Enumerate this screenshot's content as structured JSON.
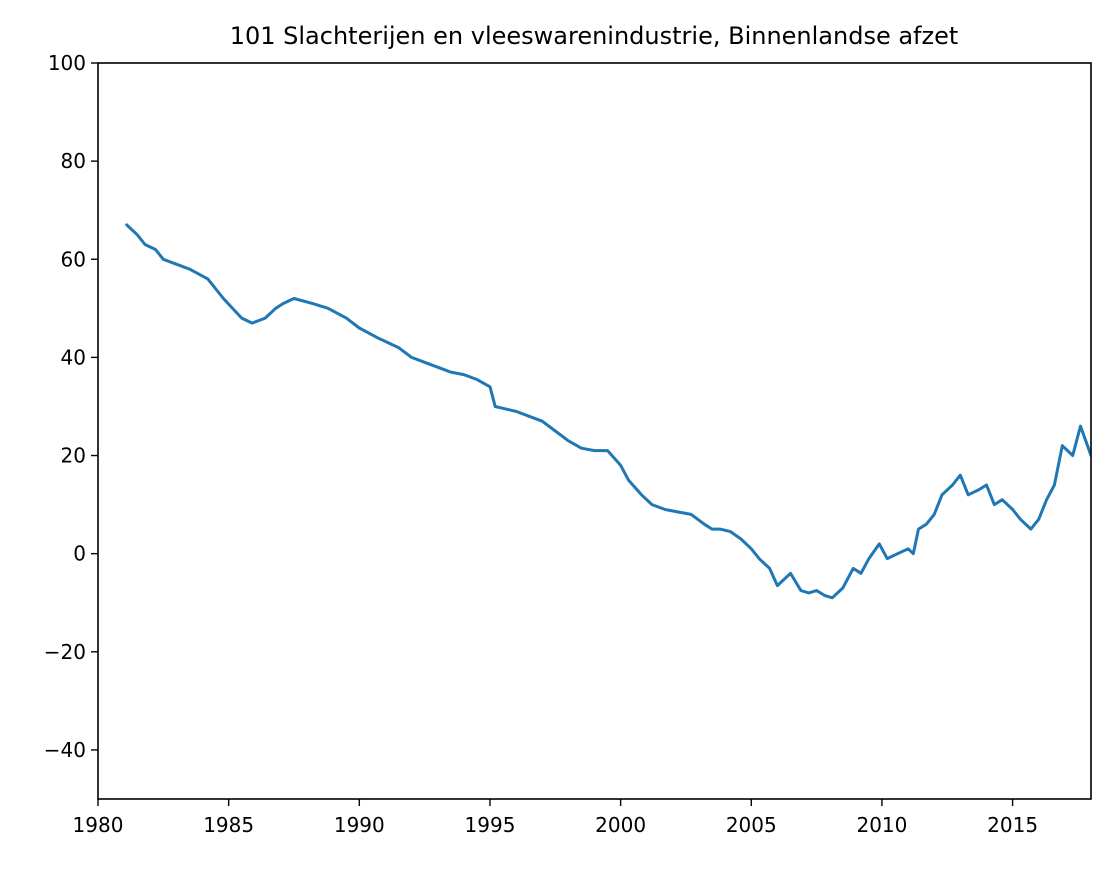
{
  "chart_data": {
    "type": "line",
    "title": "101 Slachterijen en vleeswarenindustrie, Binnenlandse afzet",
    "xlabel": "",
    "ylabel": "",
    "xlim": [
      1980,
      2018
    ],
    "ylim": [
      -50,
      100
    ],
    "x_ticks": [
      1980,
      1985,
      1990,
      1995,
      2000,
      2005,
      2010,
      2015
    ],
    "x_tick_labels": [
      "1980",
      "1985",
      "1990",
      "1995",
      "2000",
      "2005",
      "2010",
      "2015"
    ],
    "y_ticks": [
      -40,
      -20,
      0,
      20,
      40,
      60,
      80,
      100
    ],
    "y_tick_labels": [
      "−40",
      "−20",
      "0",
      "20",
      "40",
      "60",
      "80",
      "100"
    ],
    "grid": false,
    "legend": "none",
    "series": [
      {
        "color": "#1f77b4",
        "x": [
          1981.1,
          1981.5,
          1981.8,
          1982.2,
          1982.5,
          1983,
          1983.5,
          1984.2,
          1984.8,
          1985.5,
          1985.9,
          1986.4,
          1986.8,
          1987.1,
          1987.5,
          1988.2,
          1988.8,
          1989.5,
          1990,
          1990.7,
          1991.5,
          1992,
          1992.5,
          1993,
          1993.5,
          1994,
          1994.5,
          1995,
          1995.2,
          1996,
          1996.5,
          1997,
          1997.5,
          1998,
          1998.5,
          1999,
          1999.5,
          2000,
          2000.3,
          2000.8,
          2001.2,
          2001.7,
          2002.2,
          2002.7,
          2003.2,
          2003.5,
          2003.8,
          2004.2,
          2004.6,
          2005,
          2005.3,
          2005.7,
          2006,
          2006.5,
          2006.9,
          2007.2,
          2007.5,
          2007.8,
          2008.1,
          2008.5,
          2008.9,
          2009.2,
          2009.5,
          2009.9,
          2010.2,
          2010.6,
          2011,
          2011.2,
          2011.4,
          2011.7,
          2012,
          2012.3,
          2012.7,
          2013,
          2013.3,
          2013.7,
          2014,
          2014.3,
          2014.6,
          2015,
          2015.3,
          2015.7,
          2016,
          2016.3,
          2016.6,
          2016.9,
          2017.3,
          2017.6,
          2018
        ],
        "y": [
          67,
          65,
          63,
          62,
          60,
          59,
          58,
          56,
          52,
          48,
          47,
          48,
          50,
          51,
          52,
          51,
          50,
          48,
          46,
          44,
          42,
          40,
          39,
          38,
          37,
          36.5,
          35.5,
          34,
          30,
          29,
          28,
          27,
          25,
          23,
          21.5,
          21,
          21,
          18,
          15,
          12,
          10,
          9,
          8.5,
          8,
          6,
          5,
          5,
          4.5,
          3,
          1,
          -1,
          -3,
          -6.5,
          -4,
          -7.5,
          -8,
          -7.5,
          -8.5,
          -9,
          -7,
          -3,
          -4,
          -1,
          2,
          -1,
          0,
          1,
          0,
          5,
          6,
          8,
          12,
          14,
          16,
          12,
          13,
          14,
          10,
          11,
          9,
          7,
          5,
          7,
          11,
          14,
          22,
          20,
          26,
          20
        ]
      }
    ]
  }
}
